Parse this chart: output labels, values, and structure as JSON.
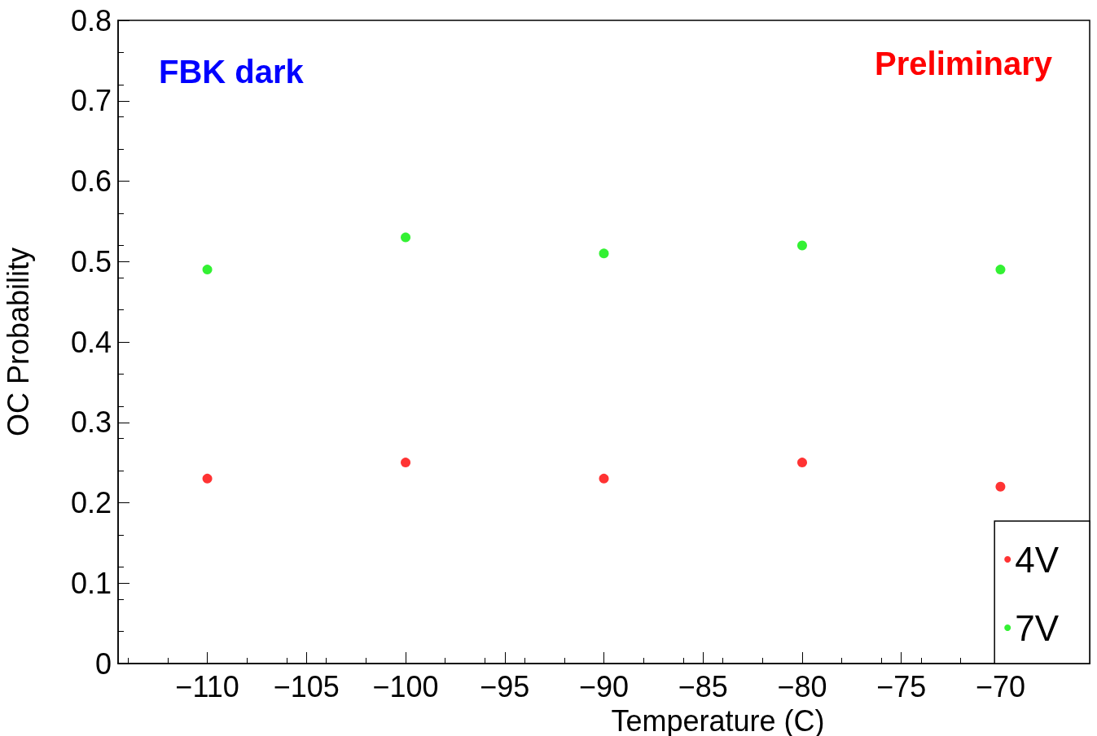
{
  "chart_data": {
    "type": "scatter",
    "xlabel": "Temperature (C)",
    "ylabel": "OC Probability",
    "annotations": [
      "FBK dark",
      "Preliminary"
    ],
    "x": [
      -110,
      -100,
      -90,
      -80,
      -70
    ],
    "series": [
      {
        "name": "4V",
        "color": "#ff0000",
        "values": [
          0.23,
          0.25,
          0.23,
          0.25,
          0.22
        ]
      },
      {
        "name": "7V",
        "color": "#00ee00",
        "values": [
          0.49,
          0.53,
          0.51,
          0.52,
          0.49
        ]
      }
    ],
    "xlim": [
      -114.5,
      -65.5
    ],
    "xticks": [
      -110,
      -105,
      -100,
      -95,
      -90,
      -85,
      -80,
      -75,
      -70
    ],
    "ylim": [
      0,
      0.8
    ],
    "yticks": [
      0,
      0.1,
      0.2,
      0.3,
      0.4,
      0.5,
      0.6,
      0.7,
      0.8
    ],
    "grid": false,
    "legend": "bottom right",
    "marker": "circle"
  }
}
